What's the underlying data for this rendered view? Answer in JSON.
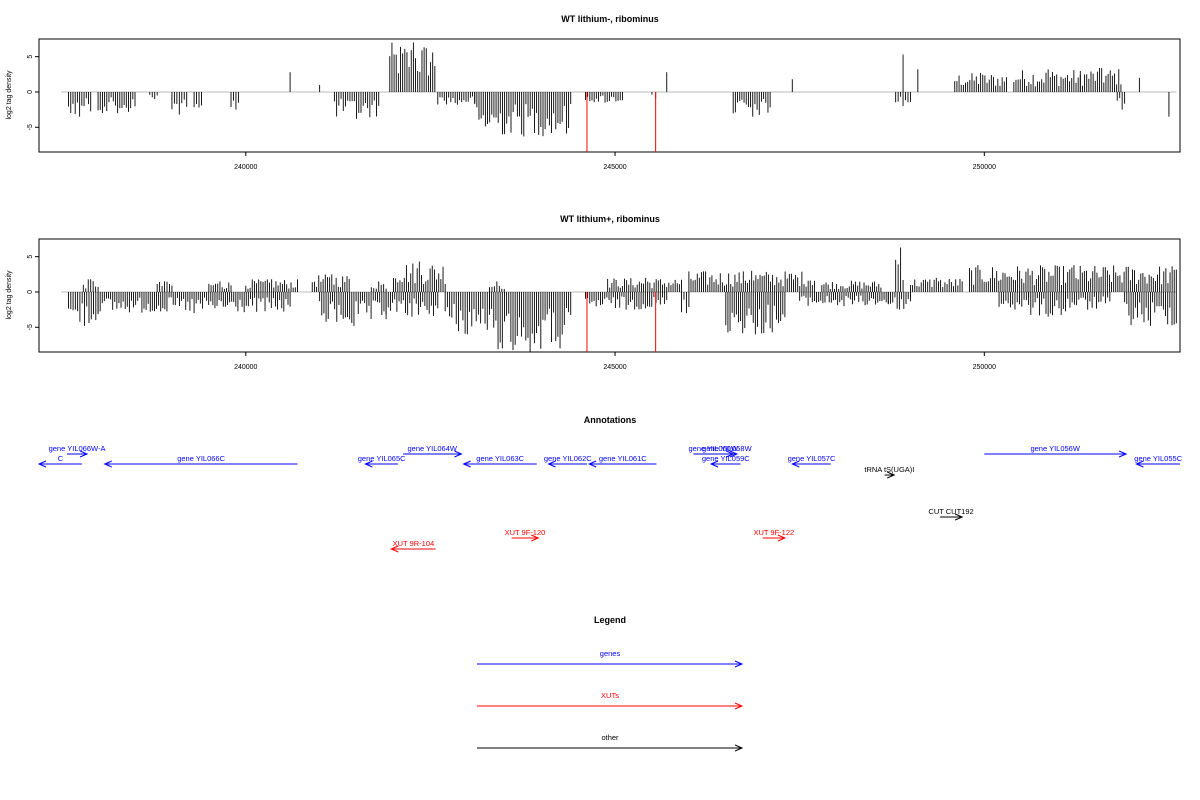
{
  "chart_data": [
    {
      "type": "bar",
      "title": "WT lithium-, ribominus",
      "ylabel": "log2 tag density",
      "xlim": [
        237200,
        252650
      ],
      "ylim": [
        -8.5,
        7.5
      ],
      "xticks": [
        240000,
        245000,
        250000
      ],
      "yticks": [
        5,
        0,
        -5
      ],
      "series": [
        {
          "sign": 1,
          "regions": [
            [
              240600,
              240620,
              2.8
            ],
            [
              241000,
              241020,
              1.0
            ],
            [
              241950,
              242560,
              7.0
            ],
            [
              245700,
              245720,
              2.8
            ],
            [
              247400,
              247420,
              1.8
            ],
            [
              248900,
              248940,
              5.3
            ],
            [
              249100,
              249120,
              3.2
            ],
            [
              249600,
              250300,
              2.7
            ],
            [
              250400,
              251300,
              3.2
            ],
            [
              251300,
              251850,
              3.4
            ],
            [
              252100,
              252130,
              2.0
            ]
          ]
        },
        {
          "sign": -1,
          "regions": [
            [
              237600,
              237900,
              -3.5
            ],
            [
              238000,
              238500,
              -3.0
            ],
            [
              238700,
              238800,
              -1.0
            ],
            [
              239000,
              239200,
              -3.2
            ],
            [
              239300,
              239400,
              -2.2
            ],
            [
              239800,
              239900,
              -2.5
            ],
            [
              241200,
              241800,
              -3.8
            ],
            [
              242600,
              243100,
              -1.8
            ],
            [
              243100,
              244400,
              -6.3
            ],
            [
              244600,
              245100,
              -1.5
            ],
            [
              245500,
              245550,
              -1.0
            ],
            [
              246600,
              247100,
              -3.5
            ],
            [
              248800,
              249000,
              -2.0
            ],
            [
              251800,
              251900,
              -2.5
            ],
            [
              252500,
              252520,
              -3.5
            ]
          ]
        }
      ],
      "red_lines": [
        {
          "x": 244620,
          "y": -8.5
        },
        {
          "x": 245550,
          "y": -8.5
        }
      ]
    },
    {
      "type": "bar",
      "title": "WT lithium+, ribominus",
      "ylabel": "log2 tag density",
      "xlim": [
        237200,
        252650
      ],
      "ylim": [
        -8.5,
        7.5
      ],
      "xticks": [
        240000,
        245000,
        250000
      ],
      "yticks": [
        5,
        0,
        -5
      ],
      "series": [
        {
          "sign": 1,
          "regions": [
            [
              237800,
              238000,
              1.8
            ],
            [
              238800,
              239000,
              1.5
            ],
            [
              239500,
              239800,
              1.5
            ],
            [
              240000,
              240700,
              1.8
            ],
            [
              240900,
              241400,
              2.5
            ],
            [
              241700,
              241900,
              1.5
            ],
            [
              242000,
              242700,
              4.3
            ],
            [
              243300,
              243500,
              1.5
            ],
            [
              244900,
              245900,
              2.0
            ],
            [
              246000,
              247700,
              3.0
            ],
            [
              247800,
              248600,
              1.6
            ],
            [
              248800,
              248900,
              6.3
            ],
            [
              249000,
              249700,
              2.0
            ],
            [
              249800,
              252600,
              3.8
            ]
          ]
        },
        {
          "sign": -1,
          "regions": [
            [
              237600,
              238000,
              -4.8
            ],
            [
              238000,
              240600,
              -3.0
            ],
            [
              241000,
              241900,
              -4.8
            ],
            [
              241900,
              242600,
              -3.5
            ],
            [
              242700,
              243300,
              -6.0
            ],
            [
              243300,
              244400,
              -8.5
            ],
            [
              244600,
              245700,
              -2.5
            ],
            [
              245900,
              246000,
              -3.0
            ],
            [
              246500,
              247300,
              -6.0
            ],
            [
              247500,
              248700,
              -2.0
            ],
            [
              248700,
              249000,
              -2.5
            ],
            [
              250200,
              250600,
              -2.5
            ],
            [
              250600,
              251100,
              -3.5
            ],
            [
              251100,
              251700,
              -2.5
            ],
            [
              251900,
              252600,
              -4.8
            ]
          ]
        }
      ],
      "red_lines": [
        {
          "x": 244620,
          "y": -8.5
        },
        {
          "x": 245550,
          "y": -8.5
        }
      ]
    }
  ],
  "annotations": {
    "title": "Annotations",
    "items": [
      {
        "label": "C",
        "x1": 237200,
        "x2": 237780,
        "dir": "left",
        "row": 2,
        "color": "#0000ff"
      },
      {
        "label": "gene YIL066W-A",
        "x1": 237580,
        "x2": 237850,
        "dir": "right",
        "row": 1,
        "color": "#0000ff"
      },
      {
        "label": "gene YIL066C",
        "x1": 238090,
        "x2": 240700,
        "dir": "left",
        "row": 2,
        "color": "#0000ff"
      },
      {
        "label": "gene YIL065C",
        "x1": 241620,
        "x2": 242060,
        "dir": "left",
        "row": 2,
        "color": "#0000ff"
      },
      {
        "label": "gene YIL064W",
        "x1": 242130,
        "x2": 242920,
        "dir": "right",
        "row": 1,
        "color": "#0000ff"
      },
      {
        "label": "gene YIL063C",
        "x1": 242950,
        "x2": 243940,
        "dir": "left",
        "row": 2,
        "color": "#0000ff"
      },
      {
        "label": "gene YIL062C",
        "x1": 244100,
        "x2": 244620,
        "dir": "left",
        "row": 2,
        "color": "#0000ff"
      },
      {
        "label": "gene YIL061C",
        "x1": 244650,
        "x2": 245560,
        "dir": "left",
        "row": 2,
        "color": "#0000ff"
      },
      {
        "label": "gene YIL060W",
        "x1": 246060,
        "x2": 246600,
        "dir": "right",
        "row": 1,
        "color": "#0000ff"
      },
      {
        "label": "gene YIL058W",
        "x1": 246380,
        "x2": 246650,
        "dir": "right",
        "row": 1,
        "color": "#0000ff"
      },
      {
        "label": "gene YIL059C",
        "x1": 246300,
        "x2": 246700,
        "dir": "left",
        "row": 2,
        "color": "#0000ff"
      },
      {
        "label": "gene YIL057C",
        "x1": 247400,
        "x2": 247920,
        "dir": "left",
        "row": 2,
        "color": "#0000ff"
      },
      {
        "label": "tRNA tS(UGA)I",
        "x1": 248650,
        "x2": 248780,
        "dir": "right",
        "row": 3,
        "color": "#000000"
      },
      {
        "label": "gene YIL056W",
        "x1": 250000,
        "x2": 251920,
        "dir": "right",
        "row": 1,
        "color": "#0000ff"
      },
      {
        "label": "gene YIL055C",
        "x1": 252060,
        "x2": 252650,
        "dir": "left",
        "row": 2,
        "color": "#0000ff"
      },
      {
        "label": "CUT CUT192",
        "x1": 249400,
        "x2": 249700,
        "dir": "right",
        "row": 5,
        "color": "#000000"
      },
      {
        "label": "XUT 9F-120",
        "x1": 243600,
        "x2": 243960,
        "dir": "right",
        "row": 6,
        "color": "#ff0000"
      },
      {
        "label": "XUT 9F-122",
        "x1": 247000,
        "x2": 247300,
        "dir": "right",
        "row": 6,
        "color": "#ff0000"
      },
      {
        "label": "XUT 9R-104",
        "x1": 241970,
        "x2": 242570,
        "dir": "left",
        "row": 7,
        "color": "#ff0000"
      }
    ]
  },
  "legend": {
    "title": "Legend",
    "entries": [
      {
        "label": "genes",
        "color": "#0000ff"
      },
      {
        "label": "XUTs",
        "color": "#ff0000"
      },
      {
        "label": "other",
        "color": "#000000"
      }
    ]
  }
}
